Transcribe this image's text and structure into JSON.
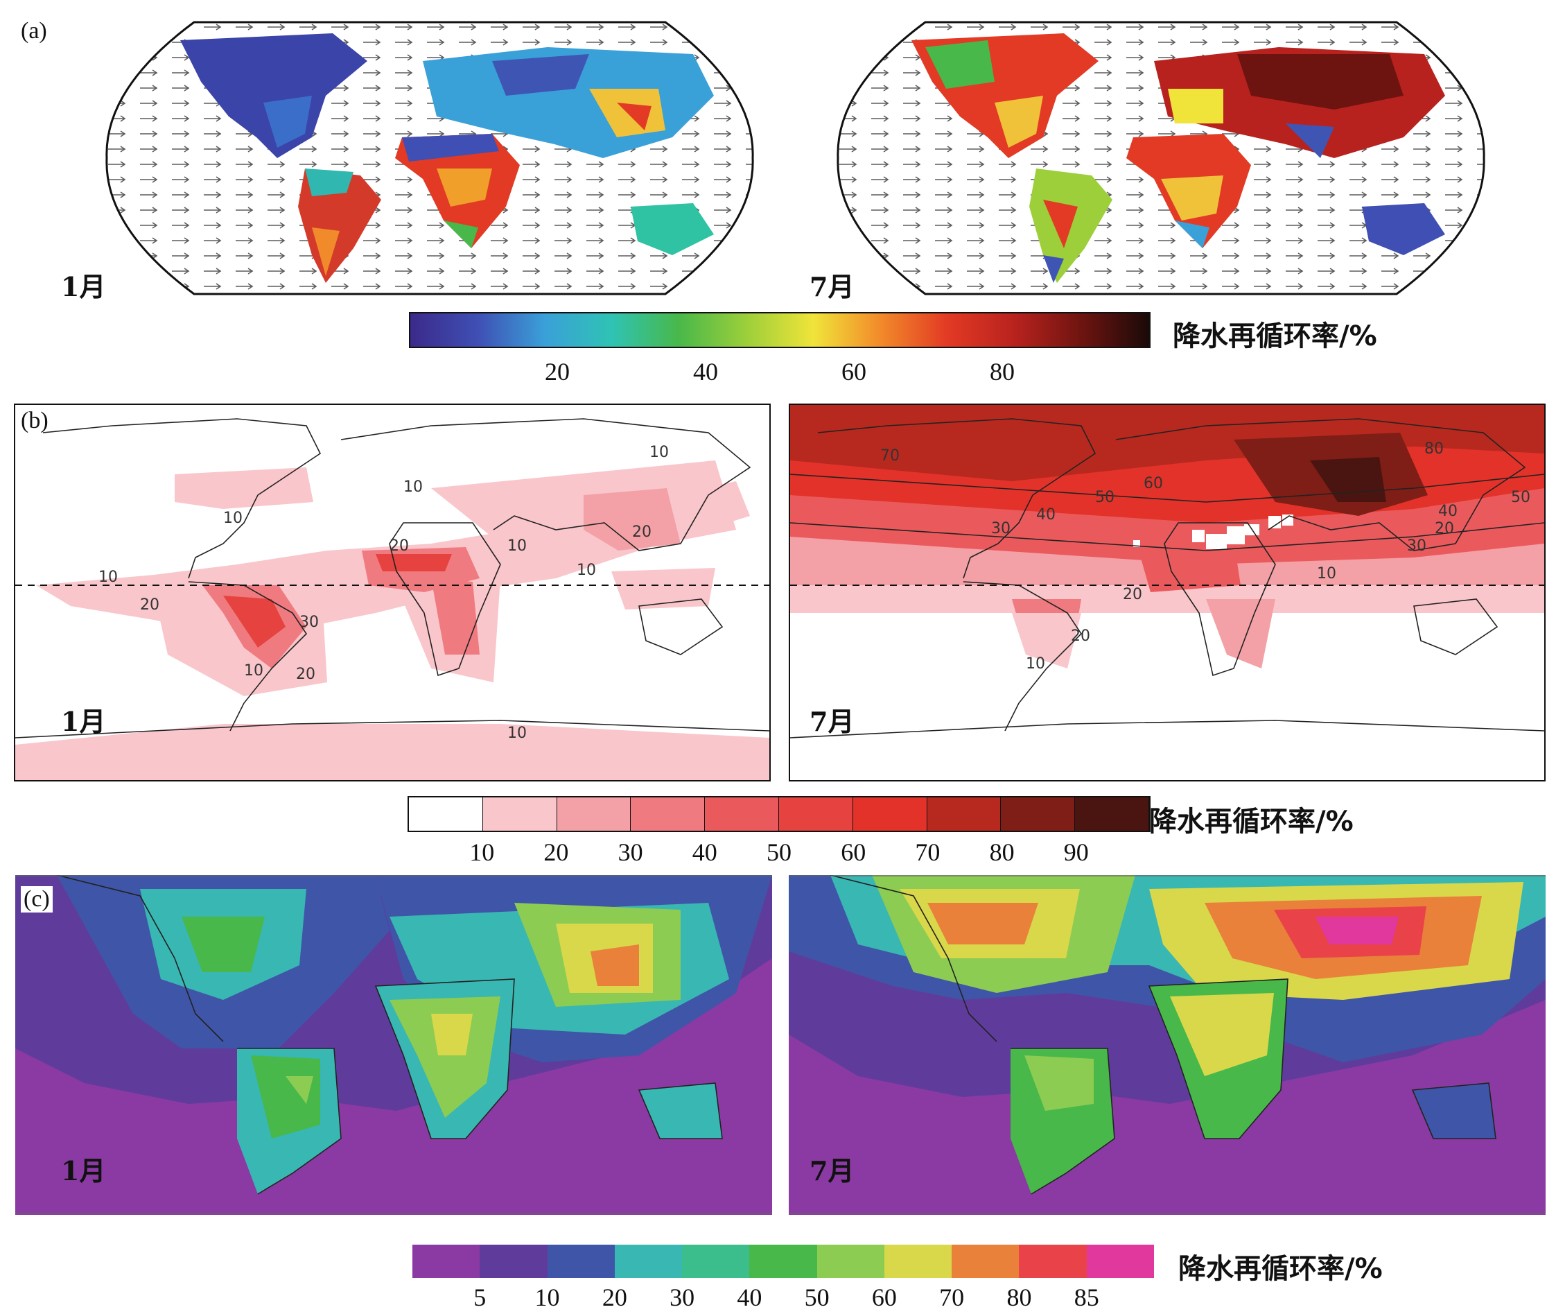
{
  "panels": {
    "a": {
      "label": "(a)",
      "months": [
        "1月",
        "7月"
      ]
    },
    "b": {
      "label": "(b)",
      "months": [
        "1月",
        "7月"
      ]
    },
    "c": {
      "label": "(c)",
      "months": [
        "1月",
        "7月"
      ]
    }
  },
  "colorbars": {
    "a": {
      "title": "降水再循环率/%",
      "ticks": [
        "20",
        "40",
        "60",
        "80"
      ],
      "tick_values": [
        20,
        40,
        60,
        80
      ],
      "range": [
        0,
        100
      ],
      "gradient": [
        "#3b2a8a",
        "#3f4fb4",
        "#3aa0d8",
        "#2fc3b4",
        "#49b84a",
        "#9ccf3a",
        "#f0e43a",
        "#f28a2a",
        "#e23a24",
        "#b8221e",
        "#6e1410",
        "#1a0a08"
      ]
    },
    "b": {
      "title": "降水再循环率/%",
      "ticks": [
        "10",
        "20",
        "30",
        "40",
        "50",
        "60",
        "70",
        "80",
        "90"
      ],
      "colors": [
        "#ffffff",
        "#f9c6cb",
        "#f3a1a6",
        "#ef7b80",
        "#ea5a5d",
        "#e6423f",
        "#e3322a",
        "#b7291f",
        "#7f1e16",
        "#4a1510"
      ]
    },
    "c": {
      "title": "降水再循环率/%",
      "ticks": [
        "5",
        "10",
        "20",
        "30",
        "40",
        "50",
        "60",
        "70",
        "80",
        "85"
      ],
      "colors": [
        "#8a3aa2",
        "#5f3c9c",
        "#3f55a8",
        "#39b7b3",
        "#3cbd8c",
        "#48b84a",
        "#8ccc52",
        "#d8d84a",
        "#e9813a",
        "#e94248",
        "#e0389c"
      ]
    }
  },
  "map_annotations": {
    "b_jan": [
      "10",
      "10",
      "10",
      "10",
      "20",
      "10",
      "10",
      "20",
      "20",
      "30",
      "20",
      "10",
      "10"
    ],
    "b_jul": [
      "80",
      "70",
      "60",
      "50",
      "40",
      "30",
      "50",
      "40",
      "30",
      "20",
      "10",
      "20",
      "20",
      "10"
    ]
  }
}
